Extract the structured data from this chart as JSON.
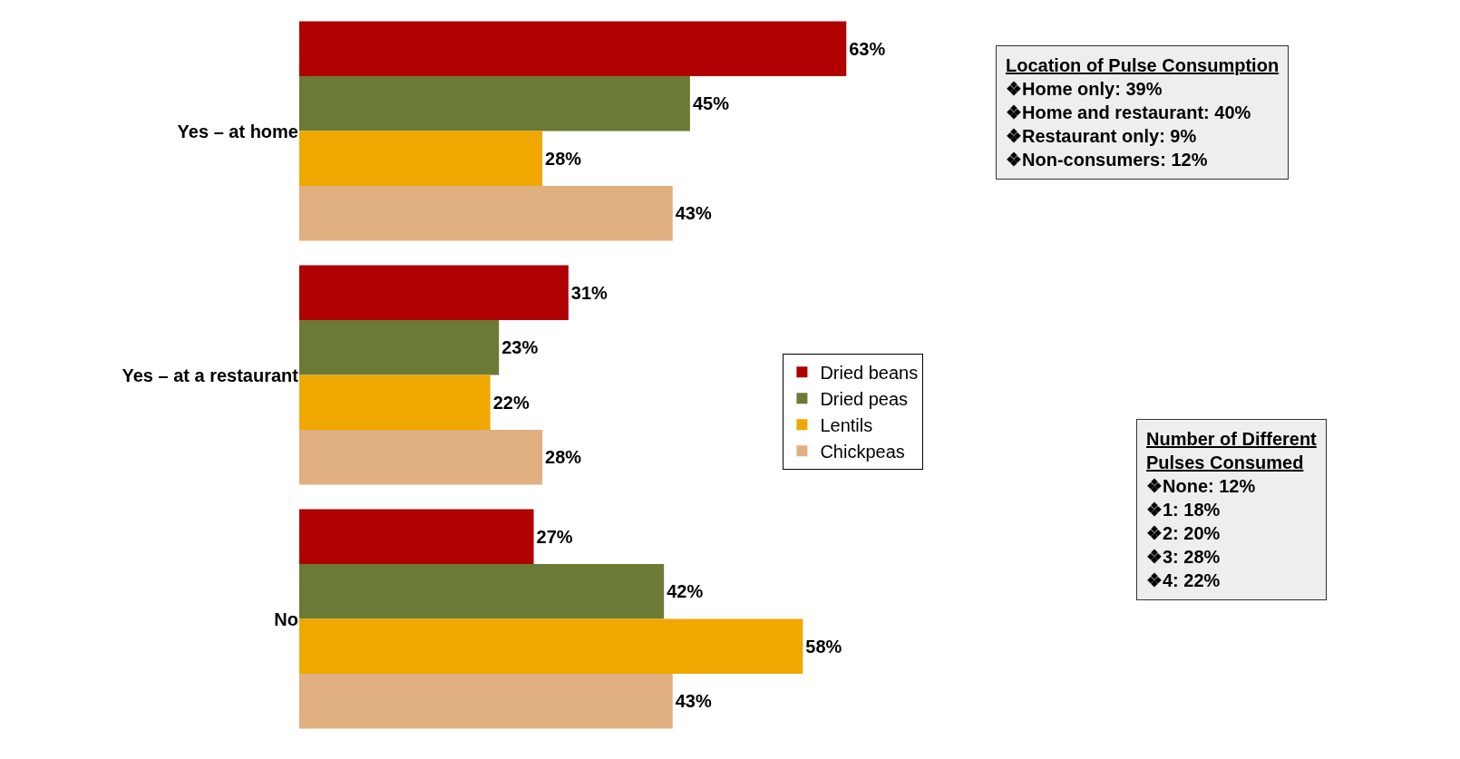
{
  "chart_data": {
    "type": "bar",
    "orientation": "horizontal",
    "categories": [
      "Yes – at home",
      "Yes – at a restaurant",
      "No"
    ],
    "series": [
      {
        "name": "Dried beans",
        "color": "#b00000",
        "values": [
          63,
          31,
          27
        ],
        "value_labels": [
          "63%",
          "31%",
          "27%"
        ]
      },
      {
        "name": "Dried peas",
        "color": "#6b7a35",
        "values": [
          45,
          23,
          42
        ],
        "value_labels": [
          "45%",
          "23%",
          "42%"
        ]
      },
      {
        "name": "Lentils",
        "color": "#f0a800",
        "values": [
          28,
          22,
          58
        ],
        "value_labels": [
          "28%",
          "22%",
          "58%"
        ]
      },
      {
        "name": "Chickpeas",
        "color": "#e0b080",
        "values": [
          43,
          28,
          43
        ],
        "value_labels": [
          "43%",
          "28%",
          "43%"
        ]
      }
    ],
    "legend": "right",
    "annotations": [
      "Location of Pulse Consumption",
      "❖Home only: 39%\n❖Home and restaurant: 40%\n❖Restaurant only: 9%\n❖Non-consumers: 12%",
      "Number of Different\nPulses Consumed",
      "❖None: 12%\n❖1: 18%\n❖2: 20%\n❖3: 28%\n❖4: 22%"
    ]
  }
}
